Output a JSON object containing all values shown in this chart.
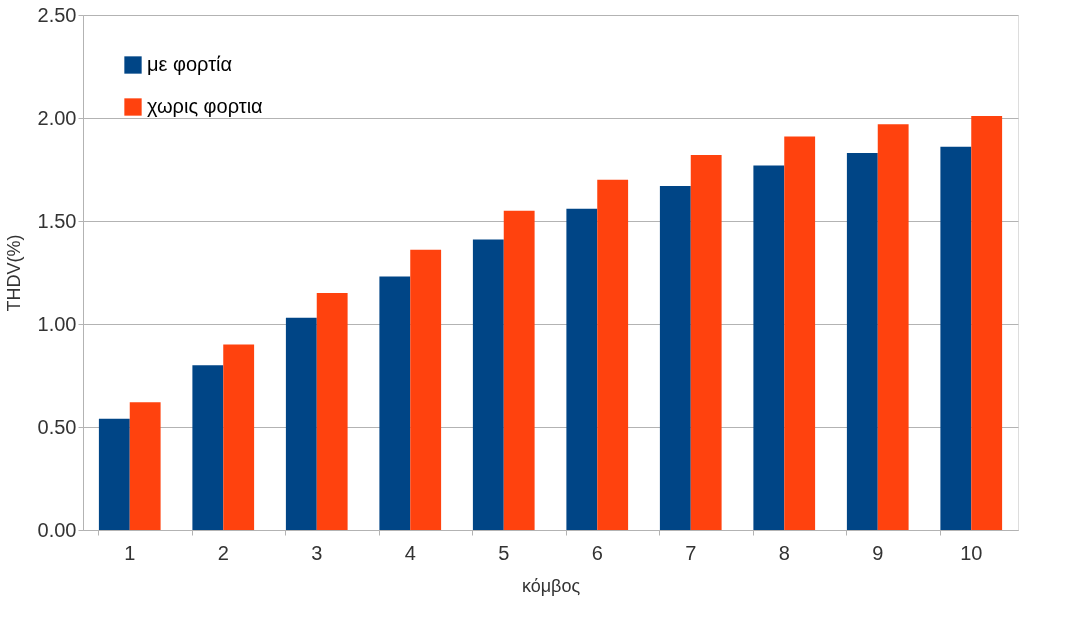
{
  "chart_data": {
    "type": "bar",
    "xlabel": "κόμβος",
    "ylabel": "THDV(%)",
    "categories": [
      "1",
      "2",
      "3",
      "4",
      "5",
      "6",
      "7",
      "8",
      "9",
      "10"
    ],
    "series": [
      {
        "name": "με φορτία",
        "color": "#004586",
        "values": [
          0.54,
          0.8,
          1.03,
          1.23,
          1.41,
          1.56,
          1.67,
          1.77,
          1.83,
          1.86
        ]
      },
      {
        "name": "χωρις φορτια",
        "color": "#ff420e",
        "values": [
          0.62,
          0.9,
          1.15,
          1.36,
          1.55,
          1.7,
          1.82,
          1.91,
          1.97,
          2.01
        ]
      }
    ],
    "ylim": [
      0,
      2.5
    ],
    "yticks": [
      {
        "value": 0,
        "label": "0.00"
      },
      {
        "value": 0.5,
        "label": "0.50"
      },
      {
        "value": 1,
        "label": "1.00"
      },
      {
        "value": 1.5,
        "label": "1.50"
      },
      {
        "value": 2,
        "label": "2.00"
      },
      {
        "value": 2.5,
        "label": "2.50"
      }
    ],
    "grid": "y",
    "legend": "top left"
  }
}
